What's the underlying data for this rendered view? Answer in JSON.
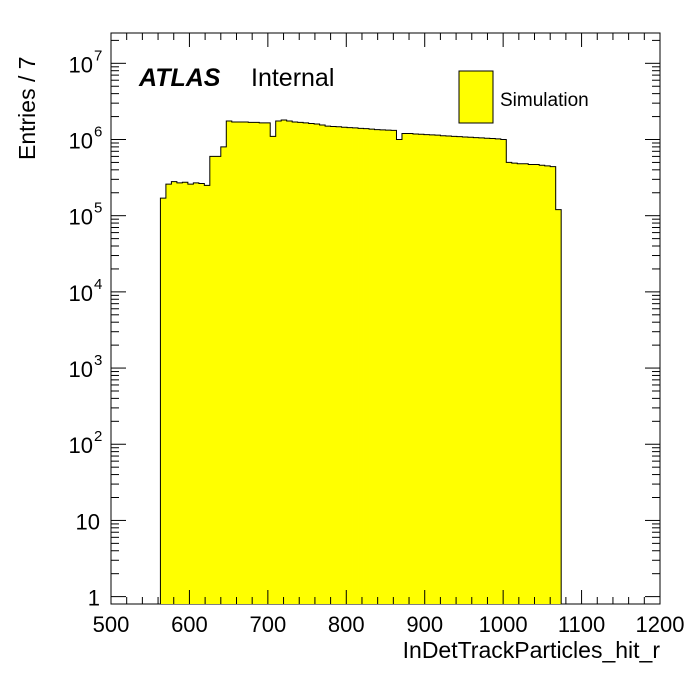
{
  "chart_data": {
    "type": "bar",
    "xlabel": "InDetTrackParticles_hit_r",
    "ylabel": "Entries / 7",
    "xlim": [
      500,
      1200
    ],
    "ylim": [
      0.8,
      25000000
    ],
    "yscale": "log",
    "bin_width": 7,
    "x_ticks": [
      "500",
      "600",
      "700",
      "800",
      "900",
      "1000",
      "1100",
      "1200"
    ],
    "y_ticks": [
      {
        "value": 1,
        "base": "1",
        "exp": ""
      },
      {
        "value": 10,
        "base": "10",
        "exp": ""
      },
      {
        "value": 100,
        "base": "10",
        "exp": "2"
      },
      {
        "value": 1000,
        "base": "10",
        "exp": "3"
      },
      {
        "value": 10000,
        "base": "10",
        "exp": "4"
      },
      {
        "value": 100000,
        "base": "10",
        "exp": "5"
      },
      {
        "value": 1000000,
        "base": "10",
        "exp": "6"
      },
      {
        "value": 10000000,
        "base": "10",
        "exp": "7"
      }
    ],
    "fill_color": "#ffff00",
    "line_color": "#000000",
    "series": [
      {
        "name": "Simulation",
        "bins": [
          [
            563,
            170000
          ],
          [
            570,
            260000
          ],
          [
            577,
            280000
          ],
          [
            584,
            270000
          ],
          [
            591,
            275000
          ],
          [
            598,
            260000
          ],
          [
            605,
            270000
          ],
          [
            612,
            265000
          ],
          [
            619,
            250000
          ],
          [
            626,
            600000
          ],
          [
            633,
            600000
          ],
          [
            640,
            800000
          ],
          [
            647,
            1750000
          ],
          [
            654,
            1700000
          ],
          [
            661,
            1700000
          ],
          [
            668,
            1700000
          ],
          [
            675,
            1680000
          ],
          [
            682,
            1680000
          ],
          [
            689,
            1650000
          ],
          [
            696,
            1650000
          ],
          [
            703,
            1100000
          ],
          [
            710,
            1750000
          ],
          [
            717,
            1800000
          ],
          [
            724,
            1750000
          ],
          [
            731,
            1700000
          ],
          [
            738,
            1680000
          ],
          [
            745,
            1650000
          ],
          [
            752,
            1620000
          ],
          [
            759,
            1600000
          ],
          [
            766,
            1550000
          ],
          [
            773,
            1500000
          ],
          [
            780,
            1480000
          ],
          [
            787,
            1470000
          ],
          [
            794,
            1450000
          ],
          [
            801,
            1430000
          ],
          [
            808,
            1420000
          ],
          [
            815,
            1400000
          ],
          [
            822,
            1390000
          ],
          [
            829,
            1370000
          ],
          [
            836,
            1350000
          ],
          [
            843,
            1340000
          ],
          [
            850,
            1330000
          ],
          [
            857,
            1320000
          ],
          [
            864,
            1000000
          ],
          [
            871,
            1200000
          ],
          [
            878,
            1200000
          ],
          [
            885,
            1180000
          ],
          [
            892,
            1170000
          ],
          [
            899,
            1160000
          ],
          [
            906,
            1150000
          ],
          [
            913,
            1140000
          ],
          [
            920,
            1120000
          ],
          [
            927,
            1110000
          ],
          [
            934,
            1100000
          ],
          [
            941,
            1090000
          ],
          [
            948,
            1080000
          ],
          [
            955,
            1070000
          ],
          [
            962,
            1060000
          ],
          [
            969,
            1050000
          ],
          [
            976,
            1040000
          ],
          [
            983,
            1030000
          ],
          [
            990,
            1020000
          ],
          [
            997,
            1000000
          ],
          [
            1004,
            500000
          ],
          [
            1011,
            490000
          ],
          [
            1018,
            480000
          ],
          [
            1025,
            480000
          ],
          [
            1032,
            470000
          ],
          [
            1039,
            470000
          ],
          [
            1046,
            460000
          ],
          [
            1053,
            450000
          ],
          [
            1060,
            440000
          ],
          [
            1067,
            120000
          ]
        ]
      }
    ]
  },
  "labels": {
    "atlas": "ATLAS",
    "internal": "Internal",
    "legend_entry": "Simulation"
  }
}
